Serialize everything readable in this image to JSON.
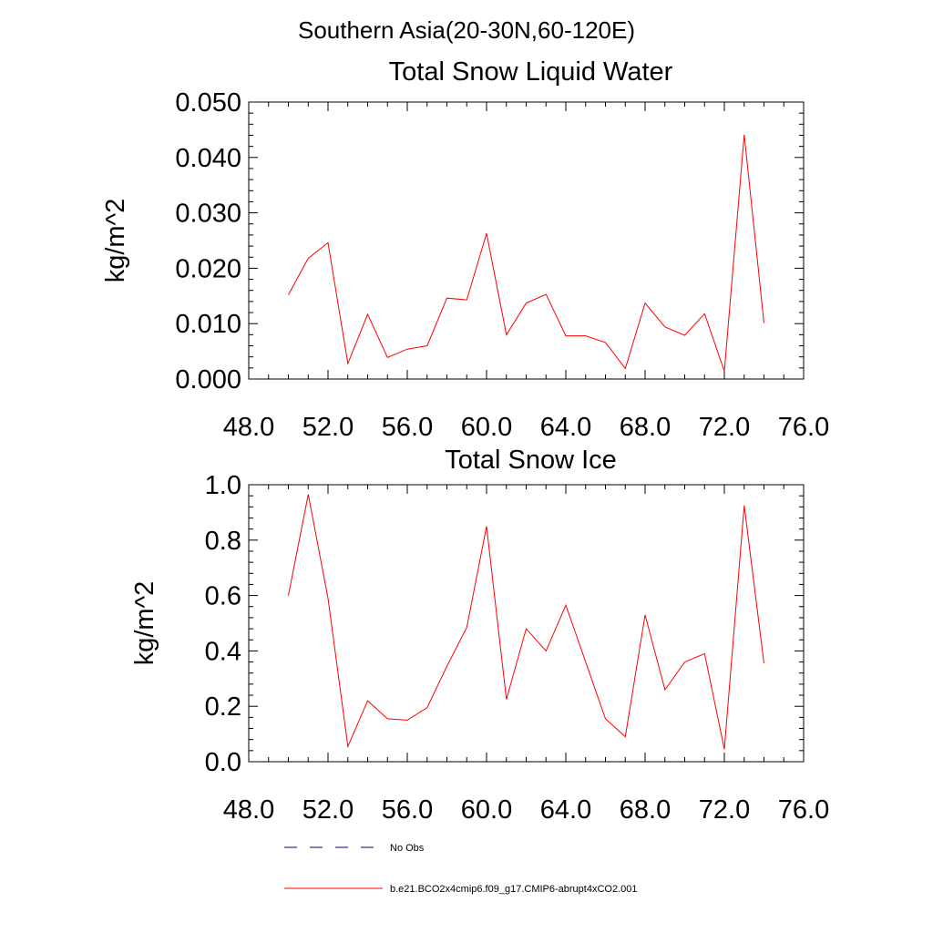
{
  "suptitle": "Southern Asia(20-30N,60-120E)",
  "legend": {
    "placement": "bottom-left",
    "items": [
      {
        "label": "No Obs",
        "style": "dashed",
        "color": "#000080"
      },
      {
        "label": "b.e21.BCO2x4cmip6.f09_g17.CMIP6-abrupt4xCO2.001",
        "style": "solid",
        "color": "#ff0000"
      }
    ]
  },
  "chart_data": [
    {
      "type": "line",
      "title": "Total Snow Liquid Water",
      "xlabel": "",
      "ylabel": "kg/m^2",
      "xlim": [
        48,
        76
      ],
      "ylim": [
        0,
        0.05
      ],
      "x_ticks": [
        48,
        52,
        56,
        60,
        64,
        68,
        72,
        76
      ],
      "x_tick_labels": [
        "48.0",
        "52.0",
        "56.0",
        "60.0",
        "64.0",
        "68.0",
        "72.0",
        "76.0"
      ],
      "y_ticks": [
        0,
        0.01,
        0.02,
        0.03,
        0.04,
        0.05
      ],
      "y_tick_labels": [
        "0.000",
        "0.010",
        "0.020",
        "0.030",
        "0.040",
        "0.050"
      ],
      "grid": false,
      "series": [
        {
          "color": "#ff0000",
          "x": [
            50,
            51,
            52,
            53,
            54,
            55,
            56,
            57,
            58,
            59,
            60,
            61,
            62,
            63,
            64,
            65,
            66,
            67,
            68,
            69,
            70,
            71,
            72,
            73,
            74
          ],
          "y": [
            0.0152,
            0.0218,
            0.0246,
            0.0028,
            0.0117,
            0.0039,
            0.0054,
            0.006,
            0.0146,
            0.0143,
            0.0263,
            0.008,
            0.0137,
            0.0153,
            0.0078,
            0.0078,
            0.0066,
            0.0019,
            0.0137,
            0.0094,
            0.0079,
            0.0118,
            0.0014,
            0.0441,
            0.0101
          ]
        }
      ]
    },
    {
      "type": "line",
      "title": "Total Snow Ice",
      "xlabel": "",
      "ylabel": "kg/m^2",
      "xlim": [
        48,
        76
      ],
      "ylim": [
        0,
        1.0
      ],
      "x_ticks": [
        48,
        52,
        56,
        60,
        64,
        68,
        72,
        76
      ],
      "x_tick_labels": [
        "48.0",
        "52.0",
        "56.0",
        "60.0",
        "64.0",
        "68.0",
        "72.0",
        "76.0"
      ],
      "y_ticks": [
        0,
        0.2,
        0.4,
        0.6,
        0.8,
        1.0
      ],
      "y_tick_labels": [
        "0.0",
        "0.2",
        "0.4",
        "0.6",
        "0.8",
        "1.0"
      ],
      "grid": false,
      "series": [
        {
          "color": "#ff0000",
          "x": [
            50,
            51,
            52,
            53,
            54,
            55,
            56,
            57,
            58,
            59,
            60,
            61,
            62,
            63,
            64,
            65,
            66,
            67,
            68,
            69,
            70,
            71,
            72,
            73,
            74
          ],
          "y": [
            0.6,
            0.965,
            0.59,
            0.055,
            0.22,
            0.155,
            0.15,
            0.195,
            0.345,
            0.485,
            0.85,
            0.225,
            0.48,
            0.4,
            0.565,
            0.36,
            0.155,
            0.09,
            0.53,
            0.26,
            0.36,
            0.39,
            0.045,
            0.925,
            0.355
          ]
        }
      ]
    }
  ]
}
